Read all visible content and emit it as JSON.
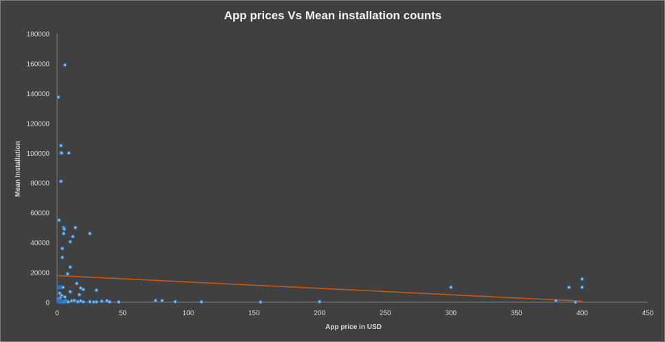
{
  "chart_data": {
    "type": "scatter",
    "title": "App prices Vs Mean installation counts",
    "xlabel": "App price in USD",
    "ylabel": "Mean  Installation",
    "xlim": [
      0,
      450
    ],
    "ylim": [
      0,
      180000
    ],
    "x_ticks": [
      "0",
      "50",
      "100",
      "150",
      "200",
      "250",
      "300",
      "350",
      "400",
      "450"
    ],
    "y_ticks": [
      "0",
      "20000",
      "40000",
      "60000",
      "80000",
      "100000",
      "120000",
      "140000",
      "160000",
      "180000"
    ],
    "grid": false,
    "legend": "none",
    "colors": {
      "background": "#404040",
      "points": "#5b9bd5",
      "trendline": "#c55a11",
      "text": "#d9d9d9"
    },
    "trendline": {
      "type": "linear",
      "x": [
        0,
        400
      ],
      "y": [
        17800,
        700
      ]
    },
    "series": [
      {
        "points": [
          [
            0.99,
            137500
          ],
          [
            5.99,
            159000
          ],
          [
            2.99,
            105000
          ],
          [
            2.99,
            100000
          ],
          [
            3.49,
            100000
          ],
          [
            8.99,
            100000
          ],
          [
            2.99,
            81000
          ],
          [
            1.49,
            55000
          ],
          [
            4.99,
            50000
          ],
          [
            5.49,
            49000
          ],
          [
            13.99,
            50000
          ],
          [
            4.99,
            46000
          ],
          [
            24.99,
            46000
          ],
          [
            11.99,
            44000
          ],
          [
            9.99,
            40500
          ],
          [
            3.99,
            36000
          ],
          [
            3.99,
            30000
          ],
          [
            9.99,
            23500
          ],
          [
            7.99,
            19000
          ],
          [
            0.99,
            10000
          ],
          [
            1.49,
            10000
          ],
          [
            1.99,
            10000
          ],
          [
            2.49,
            10000
          ],
          [
            2.99,
            10000
          ],
          [
            3.49,
            10000
          ],
          [
            3.99,
            10000
          ],
          [
            4.49,
            10000
          ],
          [
            14.99,
            12500
          ],
          [
            17.99,
            9500
          ],
          [
            19.99,
            8500
          ],
          [
            29.99,
            8000
          ],
          [
            9.99,
            7000
          ],
          [
            16.99,
            5000
          ],
          [
            1.99,
            6000
          ],
          [
            3.49,
            4500
          ],
          [
            5.99,
            3500
          ],
          [
            2.49,
            3000
          ],
          [
            0.99,
            2000
          ],
          [
            1.99,
            1500
          ],
          [
            0.99,
            500
          ],
          [
            1.49,
            800
          ],
          [
            1.99,
            300
          ],
          [
            2.49,
            600
          ],
          [
            2.99,
            200
          ],
          [
            3.49,
            400
          ],
          [
            3.99,
            100
          ],
          [
            4.49,
            500
          ],
          [
            4.99,
            200
          ],
          [
            5.49,
            100
          ],
          [
            5.99,
            700
          ],
          [
            6.99,
            1000
          ],
          [
            7.49,
            400
          ],
          [
            8.49,
            200
          ],
          [
            10.99,
            800
          ],
          [
            12.99,
            1200
          ],
          [
            14.99,
            500
          ],
          [
            15.99,
            300
          ],
          [
            17.99,
            800
          ],
          [
            19.99,
            200
          ],
          [
            24.99,
            300
          ],
          [
            27.99,
            100
          ],
          [
            29.99,
            200
          ],
          [
            33.99,
            600
          ],
          [
            37.99,
            900
          ],
          [
            39.99,
            200
          ],
          [
            46.99,
            100
          ],
          [
            74.99,
            1000
          ],
          [
            79.99,
            1000
          ],
          [
            89.99,
            300
          ],
          [
            109.99,
            200
          ],
          [
            154.99,
            100
          ],
          [
            199.99,
            300
          ],
          [
            299.99,
            10000
          ],
          [
            379.99,
            1000
          ],
          [
            389.99,
            10000
          ],
          [
            394.99,
            0
          ],
          [
            399.99,
            10000
          ],
          [
            399.99,
            15500
          ]
        ]
      }
    ]
  }
}
